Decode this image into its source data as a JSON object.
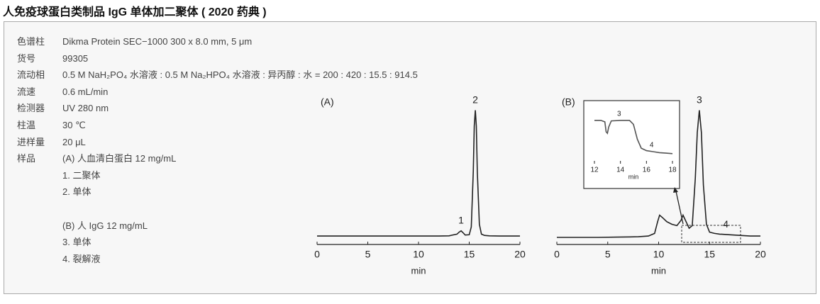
{
  "title": "人免疫球蛋白类制品 IgG 单体加二聚体 ( 2020 药典 )",
  "conditions": [
    {
      "label": "色谱柱",
      "value": "Dikma Protein SEC−1000 300 x 8.0 mm, 5 μm"
    },
    {
      "label": "货号",
      "value": "99305"
    },
    {
      "label": "流动相",
      "value": "0.5 M NaH₂PO₄ 水溶液 : 0.5 M Na₂HPO₄ 水溶液 : 异丙醇 : 水 = 200 : 420 : 15.5 : 914.5"
    },
    {
      "label": "流速",
      "value": "0.6 mL/min"
    },
    {
      "label": "检测器",
      "value": "UV 280 nm"
    },
    {
      "label": "柱温",
      "value": "30 ℃"
    },
    {
      "label": "进样量",
      "value": "20 μL"
    }
  ],
  "sample": {
    "label": "样品",
    "groups": [
      [
        "(A) 人血清白蛋白 12 mg/mL",
        "1. 二聚体",
        "2. 单体"
      ],
      [
        "(B) 人 IgG 12 mg/mL",
        "3. 单体",
        "4. 裂解液"
      ]
    ]
  },
  "chart_data": [
    {
      "type": "line",
      "title": "(A)",
      "xlabel": "min",
      "xlim": [
        0,
        20
      ],
      "xticks": [
        0,
        5,
        10,
        15,
        20
      ],
      "ylim": [
        0,
        100
      ],
      "color": "#222222",
      "x": [
        0,
        2,
        4,
        6,
        8,
        10,
        12,
        13,
        13.8,
        14.0,
        14.2,
        14.4,
        14.6,
        15.0,
        15.2,
        15.4,
        15.5,
        15.6,
        15.7,
        15.8,
        16.0,
        16.2,
        16.5,
        17,
        18,
        19,
        20
      ],
      "values": [
        1,
        1,
        1,
        1,
        1,
        1,
        1,
        1.2,
        2.5,
        4,
        5,
        3.5,
        1.8,
        2,
        8,
        50,
        85,
        97,
        85,
        50,
        10,
        2.5,
        1.5,
        1.2,
        1,
        1,
        1
      ],
      "peak_labels": [
        {
          "text": "1",
          "x": 14.2
        },
        {
          "text": "2",
          "x": 15.6
        }
      ]
    },
    {
      "type": "line",
      "title": "(B)",
      "xlabel": "min",
      "xlim": [
        0,
        20
      ],
      "xticks": [
        0,
        5,
        10,
        15,
        20
      ],
      "ylim": [
        0,
        100
      ],
      "color": "#222222",
      "x": [
        0,
        2,
        4,
        6,
        8,
        9,
        9.6,
        9.9,
        10.1,
        10.4,
        10.8,
        11.3,
        11.8,
        12.2,
        12.4,
        12.7,
        13.0,
        13.3,
        13.6,
        13.8,
        14.0,
        14.2,
        14.4,
        14.7,
        15.0,
        15.5,
        16,
        17,
        18,
        19,
        20
      ],
      "values": [
        0,
        0,
        0,
        0.2,
        0.5,
        1,
        3,
        12,
        17,
        15,
        12,
        10,
        9,
        13,
        17,
        12,
        7,
        9,
        45,
        80,
        97,
        80,
        40,
        10,
        4,
        3,
        2.5,
        2,
        1.5,
        1,
        1
      ],
      "peak_labels": [
        {
          "text": "3",
          "x": 14.0
        },
        {
          "text": "4",
          "x": 16.6
        }
      ]
    },
    {
      "type": "line",
      "xlabel": "min",
      "xlim": [
        12,
        18
      ],
      "xticks": [
        12,
        14,
        16,
        18
      ],
      "ylim": [
        0,
        100
      ],
      "color": "#555555",
      "x": [
        12,
        12.5,
        12.8,
        12.9,
        13.0,
        13.1,
        13.3,
        14,
        14.7,
        15.0,
        15.3,
        15.6,
        16,
        16.5,
        17,
        17.5,
        18
      ],
      "values": [
        93,
        93,
        90,
        70,
        67,
        80,
        92,
        93,
        93,
        85,
        55,
        37,
        32,
        30,
        28,
        27,
        26
      ],
      "peak_labels": [
        {
          "text": "3",
          "x": 13.9
        },
        {
          "text": "4",
          "x": 16.4
        }
      ]
    }
  ]
}
